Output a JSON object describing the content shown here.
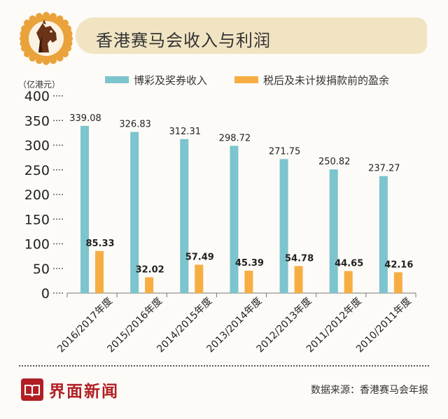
{
  "title": "香港赛马会收入与利润",
  "brand": "界面新闻",
  "source": "数据来源：香港赛马会年报",
  "colors": {
    "series1": "#7cc4ce",
    "series2": "#f6ae43",
    "brand": "#b11f24",
    "badge": "#eaa23a",
    "title_bg": "#f1e4c3"
  },
  "icons": {
    "badge": "horse-head-icon",
    "brand": "book-logo-icon"
  },
  "chart_data": {
    "type": "bar",
    "ylabel": "（亿港元）",
    "ylim": [
      0,
      400
    ],
    "yticks": [
      0,
      50,
      100,
      150,
      200,
      250,
      300,
      350,
      400
    ],
    "grid": false,
    "legend_position": "top",
    "categories": [
      "2016/2017年度",
      "2015/2016年度",
      "2014/2015年度",
      "2013/2014年度",
      "2012/2013年度",
      "2011/2012年度",
      "2010/2011年度"
    ],
    "series": [
      {
        "name": "博彩及奖券收入",
        "values": [
          339.08,
          326.83,
          312.31,
          298.72,
          271.75,
          250.82,
          237.27
        ]
      },
      {
        "name": "税后及未计拨捐款前的盈余",
        "values": [
          85.33,
          32.02,
          57.49,
          45.39,
          54.78,
          44.65,
          42.16
        ]
      }
    ]
  }
}
